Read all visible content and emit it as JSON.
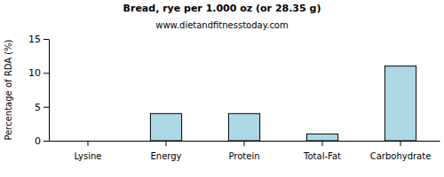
{
  "chart_data": {
    "type": "bar",
    "title": "Bread, rye per 1.000 oz (or 28.35 g)",
    "subtitle": "www.dietandfitnesstoday.com",
    "y_label": "Percentage of RDA (%)",
    "categories": [
      "Lysine",
      "Energy",
      "Protein",
      "Total-Fat",
      "Carbohydrate"
    ],
    "values": [
      0,
      4,
      4,
      1,
      11
    ],
    "color": "#add8e6",
    "ylim": [
      0,
      15
    ],
    "yticks": [
      0,
      5,
      10,
      15
    ],
    "grid": false
  }
}
